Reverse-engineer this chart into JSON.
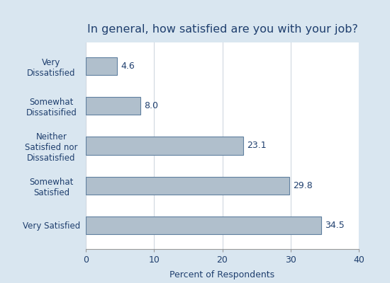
{
  "title": "In general, how satisfied are you with your job?",
  "categories": [
    "Very Satisfied",
    "Somewhat\nSatisfied",
    "Neither\nSatisfied nor\nDissatisfied",
    "Somewhat\nDissatisified",
    "Very\nDissatisfied"
  ],
  "values": [
    34.5,
    29.8,
    23.1,
    8.0,
    4.6
  ],
  "bar_color": "#b0bfcc",
  "bar_edge_color": "#6080a0",
  "xlabel": "Percent of Respondents",
  "xlim": [
    0,
    40
  ],
  "xticks": [
    0,
    10,
    20,
    30,
    40
  ],
  "background_color": "#d9e6f0",
  "plot_bg_color": "#ffffff",
  "title_color": "#1f3f6e",
  "label_color": "#1f3f6e",
  "value_color": "#1f3f6e",
  "title_fontsize": 11.5,
  "label_fontsize": 8.5,
  "tick_fontsize": 9,
  "value_fontsize": 9,
  "grid_color": "#d0d8e0",
  "bar_height": 0.45
}
